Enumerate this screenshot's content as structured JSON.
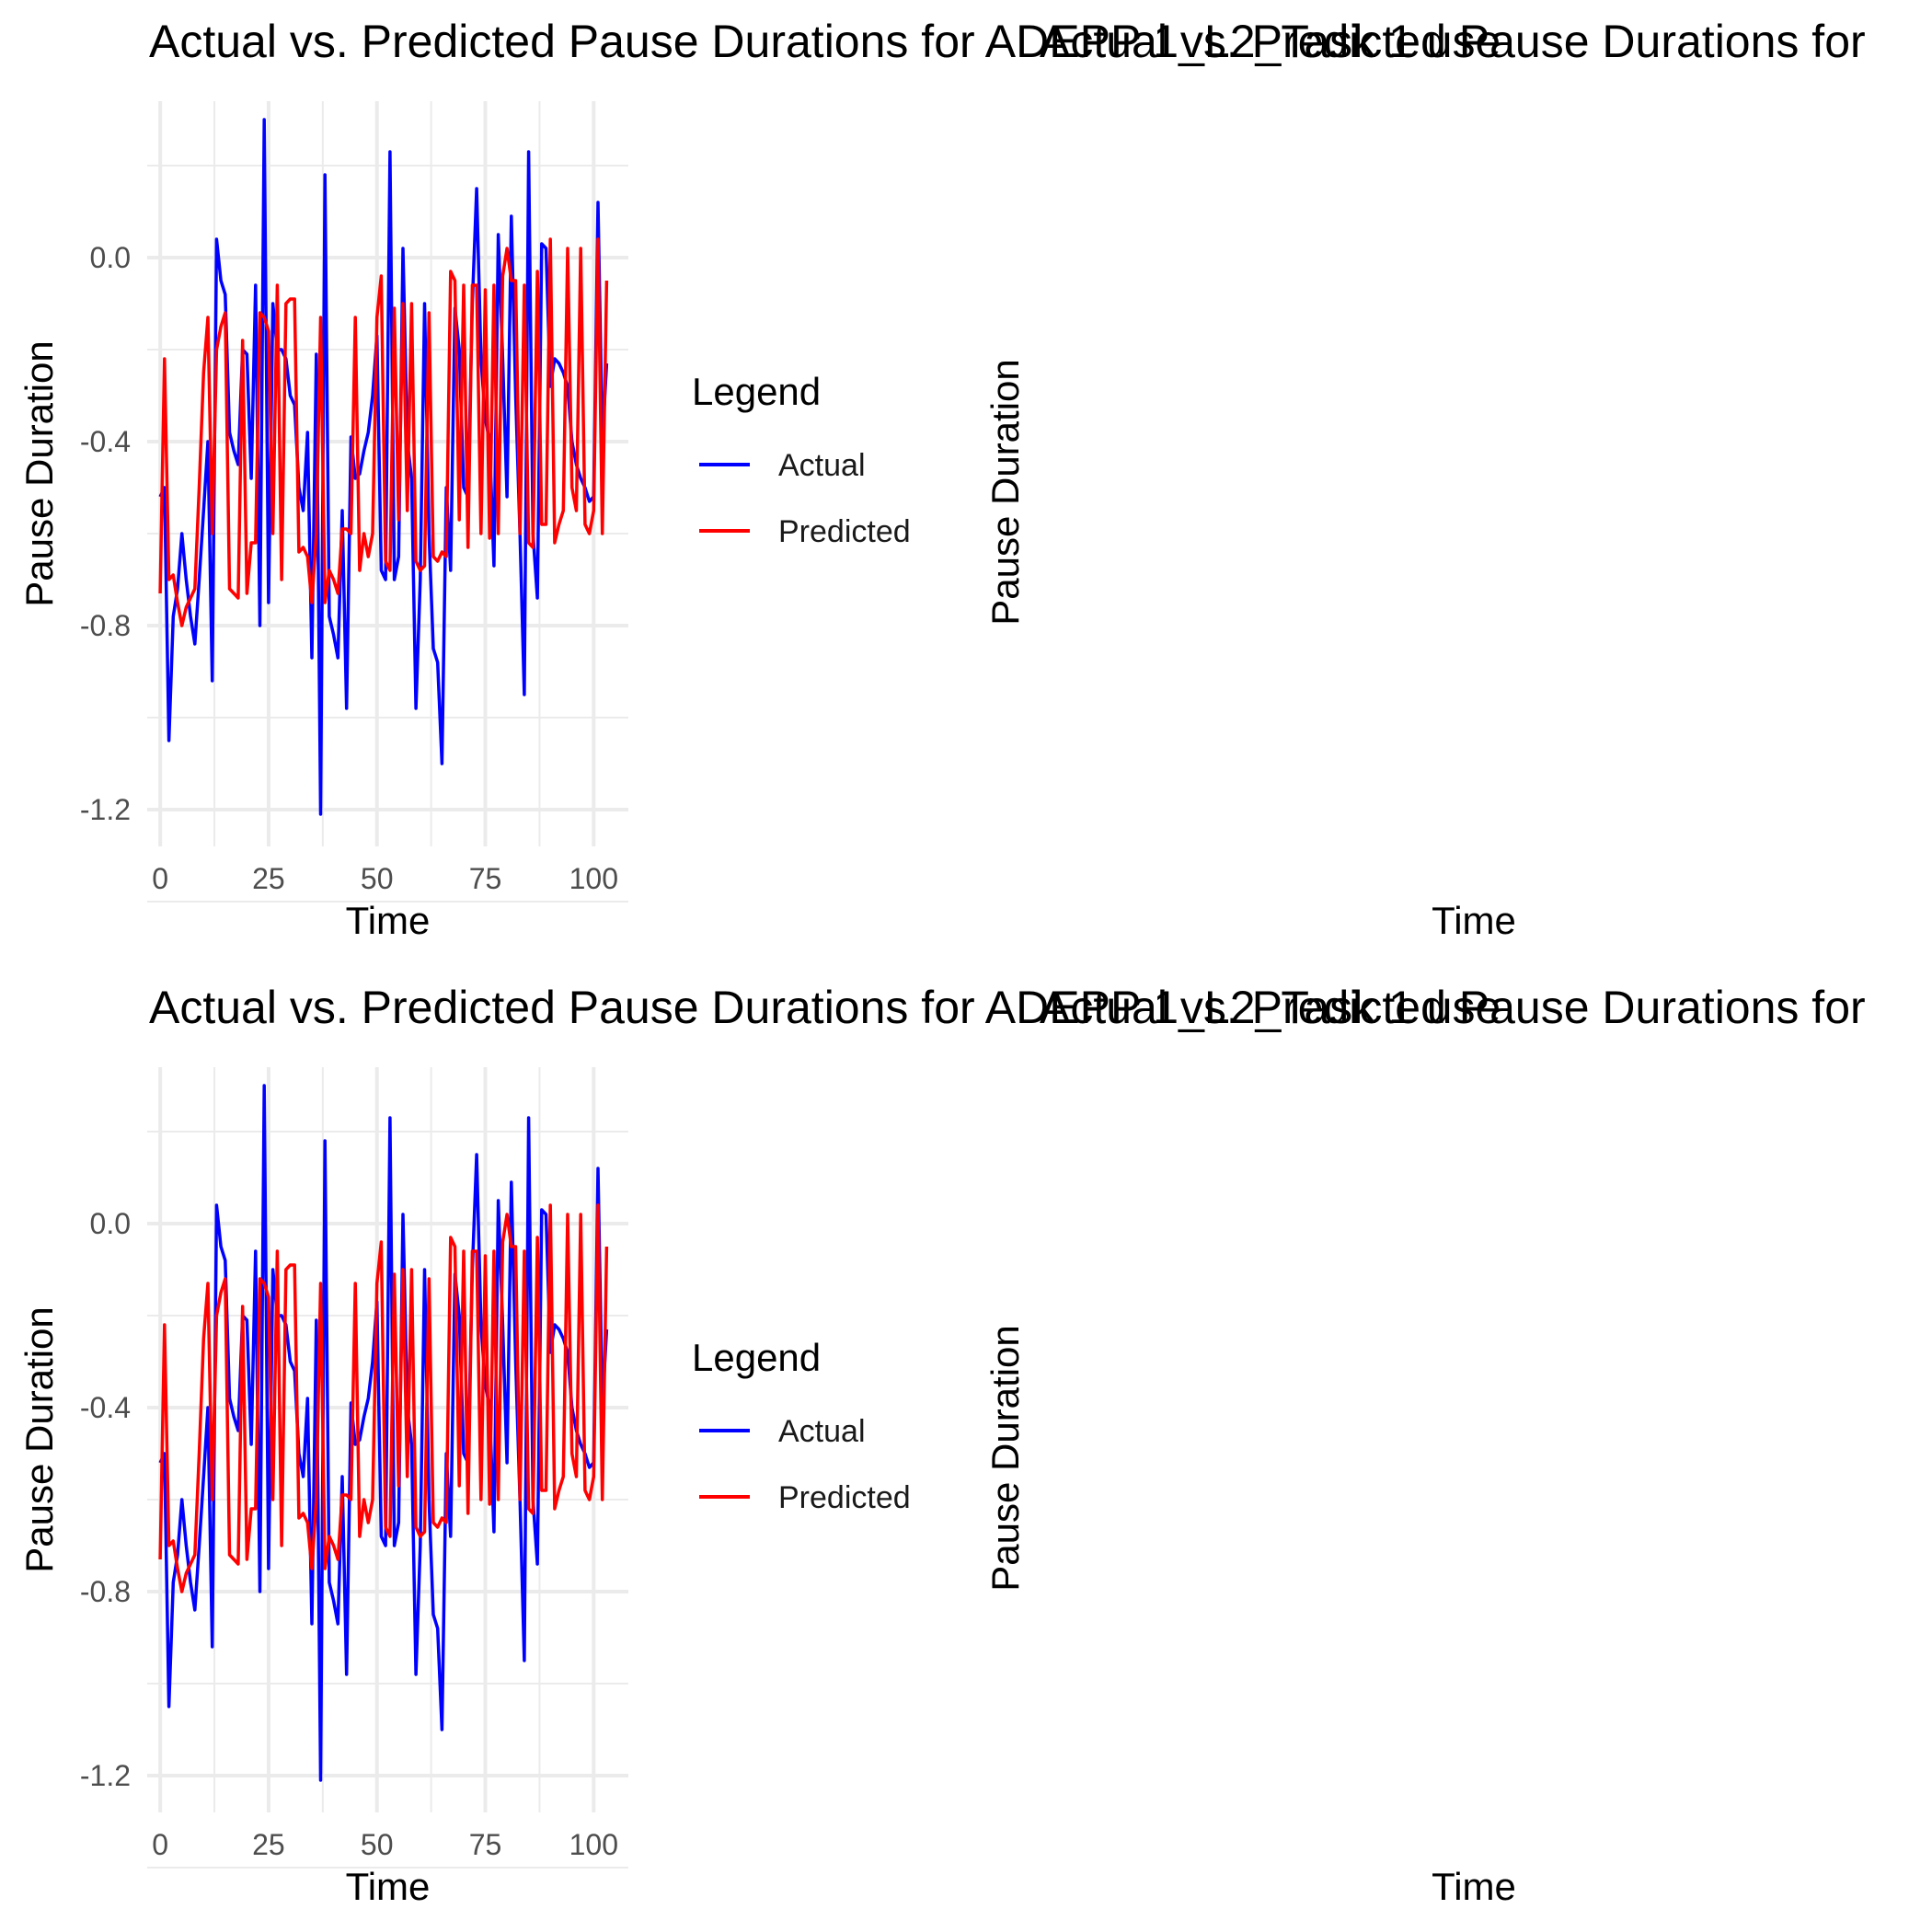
{
  "panel_titles": {
    "left": "Actual vs. Predicted Pause Durations for ADEPP 1_L2_Task 1 use",
    "right": "Actual vs. Predicted Pause Durations for"
  },
  "legend": {
    "title": "Legend",
    "entries": [
      {
        "label": "Actual",
        "color": "#0000ff"
      },
      {
        "label": "Predicted",
        "color": "#ff0000"
      }
    ]
  },
  "chart_data": [
    {
      "type": "line",
      "title": "Actual vs. Predicted Pause Durations for ADEPP 1_L2_Task 1 use",
      "xlabel": "Time",
      "ylabel": "Pause Duration",
      "xlim": [
        -3,
        108
      ],
      "ylim": [
        -1.28,
        0.34
      ],
      "x_ticks": [
        0,
        25,
        50,
        75,
        100
      ],
      "x_tick_labels": [
        "0",
        "25",
        "50",
        "75",
        "100"
      ],
      "y_ticks": [
        -1.2,
        -0.8,
        -0.4,
        0.0
      ],
      "y_tick_labels": [
        "-1.2",
        "-0.8",
        "-0.4",
        "0.0"
      ],
      "grid": true,
      "legend_position": "right",
      "x": [
        0,
        1,
        2,
        3,
        4,
        5,
        6,
        7,
        8,
        9,
        10,
        11,
        12,
        13,
        14,
        15,
        16,
        17,
        18,
        19,
        20,
        21,
        22,
        23,
        24,
        25,
        26,
        27,
        28,
        29,
        30,
        31,
        32,
        33,
        34,
        35,
        36,
        37,
        38,
        39,
        40,
        41,
        42,
        43,
        44,
        45,
        46,
        47,
        48,
        49,
        50,
        51,
        52,
        53,
        54,
        55,
        56,
        57,
        58,
        59,
        60,
        61,
        62,
        63,
        64,
        65,
        66,
        67,
        68,
        69,
        70,
        71,
        72,
        73,
        74,
        75,
        76,
        77,
        78,
        79,
        80,
        81,
        82,
        83,
        84,
        85,
        86,
        87,
        88,
        89,
        90,
        91,
        92,
        93,
        94,
        95,
        96,
        97,
        98,
        99,
        100,
        101,
        102,
        103
      ],
      "series": [
        {
          "name": "Actual",
          "color": "#0000ff",
          "values": [
            -0.52,
            -0.5,
            -1.05,
            -0.78,
            -0.72,
            -0.6,
            -0.7,
            -0.78,
            -0.84,
            -0.7,
            -0.55,
            -0.4,
            -0.92,
            0.04,
            -0.05,
            -0.08,
            -0.38,
            -0.42,
            -0.45,
            -0.2,
            -0.21,
            -0.48,
            -0.06,
            -0.8,
            0.3,
            -0.75,
            -0.1,
            -0.2,
            -0.2,
            -0.22,
            -0.3,
            -0.32,
            -0.5,
            -0.55,
            -0.38,
            -0.87,
            -0.21,
            -1.21,
            0.18,
            -0.78,
            -0.82,
            -0.87,
            -0.55,
            -0.98,
            -0.39,
            -0.48,
            -0.47,
            -0.42,
            -0.38,
            -0.3,
            -0.17,
            -0.68,
            -0.7,
            0.23,
            -0.7,
            -0.65,
            0.02,
            -0.4,
            -0.48,
            -0.98,
            -0.7,
            -0.1,
            -0.6,
            -0.85,
            -0.88,
            -1.1,
            -0.5,
            -0.68,
            -0.11,
            -0.2,
            -0.5,
            -0.52,
            -0.1,
            0.15,
            -0.22,
            -0.35,
            -0.4,
            -0.67,
            0.05,
            -0.22,
            -0.52,
            0.09,
            -0.3,
            -0.6,
            -0.95,
            0.23,
            -0.6,
            -0.74,
            0.03,
            0.02,
            -0.28,
            -0.22,
            -0.23,
            -0.25,
            -0.28,
            -0.4,
            -0.45,
            -0.48,
            -0.5,
            -0.53,
            -0.52,
            0.12,
            -0.4,
            -0.23
          ]
        },
        {
          "name": "Predicted",
          "color": "#ff0000",
          "values": [
            -0.73,
            -0.22,
            -0.7,
            -0.69,
            -0.75,
            -0.8,
            -0.76,
            -0.74,
            -0.72,
            -0.5,
            -0.25,
            -0.13,
            -0.6,
            -0.2,
            -0.15,
            -0.12,
            -0.72,
            -0.73,
            -0.74,
            -0.18,
            -0.73,
            -0.62,
            -0.62,
            -0.12,
            -0.13,
            -0.16,
            -0.6,
            -0.06,
            -0.7,
            -0.1,
            -0.09,
            -0.09,
            -0.64,
            -0.63,
            -0.65,
            -0.75,
            -0.6,
            -0.13,
            -0.75,
            -0.68,
            -0.7,
            -0.73,
            -0.59,
            -0.59,
            -0.6,
            -0.13,
            -0.68,
            -0.6,
            -0.65,
            -0.6,
            -0.13,
            -0.04,
            -0.66,
            -0.68,
            -0.11,
            -0.57,
            -0.1,
            -0.55,
            -0.1,
            -0.66,
            -0.68,
            -0.67,
            -0.12,
            -0.65,
            -0.66,
            -0.64,
            -0.65,
            -0.03,
            -0.05,
            -0.57,
            -0.06,
            -0.63,
            -0.06,
            -0.06,
            -0.6,
            -0.07,
            -0.61,
            -0.06,
            -0.6,
            -0.04,
            0.02,
            -0.05,
            -0.05,
            -0.6,
            -0.06,
            -0.62,
            -0.63,
            -0.03,
            -0.58,
            -0.58,
            0.04,
            -0.62,
            -0.58,
            -0.55,
            0.02,
            -0.5,
            -0.55,
            0.02,
            -0.58,
            -0.6,
            -0.55,
            0.04,
            -0.6,
            -0.05
          ]
        }
      ]
    },
    {
      "type": "line",
      "title": "Actual vs. Predicted Pause Durations for",
      "xlabel": "Time",
      "ylabel": "Pause Duration",
      "grid": false,
      "series": []
    },
    {
      "type": "line",
      "title": "Actual vs. Predicted Pause Durations for ADEPP 1_L2_Task 1 use",
      "xlabel": "Time",
      "ylabel": "Pause Duration",
      "same_data_as_panel": 0
    },
    {
      "type": "line",
      "title": "Actual vs. Predicted Pause Durations for",
      "xlabel": "Time",
      "ylabel": "Pause Duration",
      "grid": false,
      "series": []
    }
  ]
}
